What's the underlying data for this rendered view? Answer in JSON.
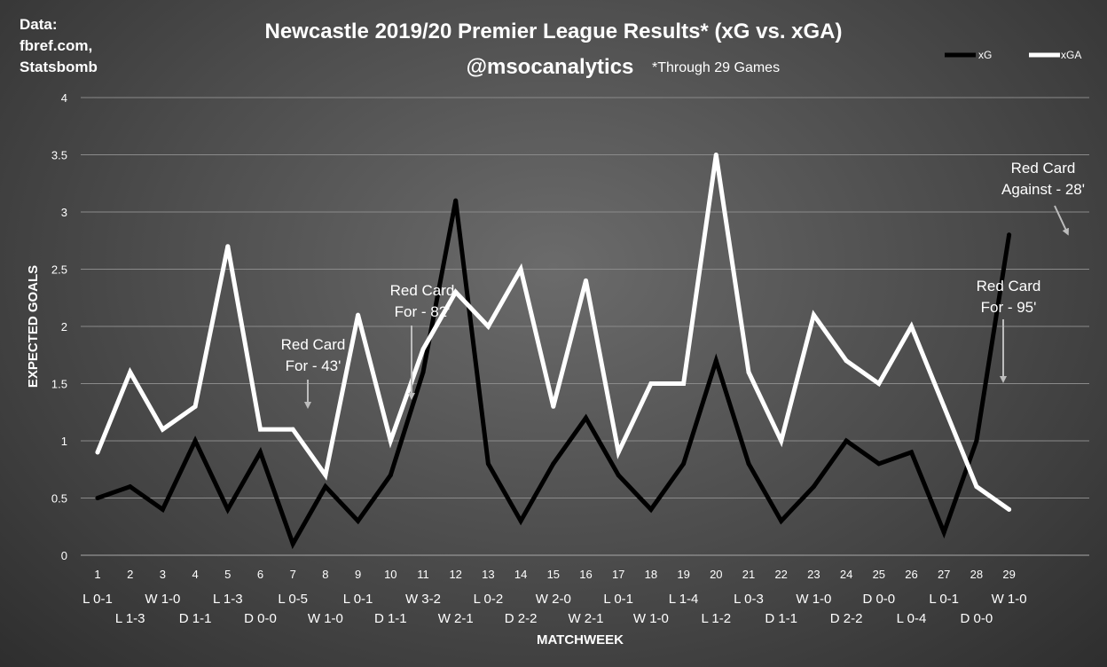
{
  "title": "Newcastle 2019/20 Premier League Results* (xG vs. xGA)",
  "subtitle": "@msocanalytics",
  "note": "*Through 29 Games",
  "source": [
    "Data:",
    "fbref.com,",
    "Statsbomb"
  ],
  "chart_data": {
    "type": "line",
    "xlabel": "MATCHWEEK",
    "ylabel": "EXPECTED GOALS",
    "ylim": [
      0,
      4
    ],
    "yticks": [
      "0",
      "0.5",
      "1",
      "1.5",
      "2",
      "2.5",
      "3",
      "3.5",
      "4"
    ],
    "grid": true,
    "legend_position": "top-right",
    "categories": [
      "1",
      "2",
      "3",
      "4",
      "5",
      "6",
      "7",
      "8",
      "9",
      "10",
      "11",
      "12",
      "13",
      "14",
      "15",
      "16",
      "17",
      "18",
      "19",
      "20",
      "21",
      "22",
      "23",
      "24",
      "25",
      "26",
      "27",
      "28",
      "29"
    ],
    "results": [
      "L 0-1",
      "L 1-3",
      "W 1-0",
      "D 1-1",
      "L 1-3",
      "D 0-0",
      "L 0-5",
      "W 1-0",
      "L 0-1",
      "D 1-1",
      "W 3-2",
      "W 2-1",
      "L 0-2",
      "D 2-2",
      "W 2-0",
      "W 2-1",
      "L 0-1",
      "W 1-0",
      "L 1-4",
      "L 1-2",
      "L 0-3",
      "D 1-1",
      "W 1-0",
      "D 2-2",
      "D 0-0",
      "L 0-4",
      "L 0-1",
      "D 0-0",
      "W 1-0"
    ],
    "series": [
      {
        "name": "xG",
        "color": "#000000",
        "values": [
          0.5,
          0.6,
          0.4,
          1.0,
          0.4,
          0.9,
          0.1,
          0.6,
          0.3,
          0.7,
          1.6,
          3.1,
          0.8,
          0.3,
          0.8,
          1.2,
          0.7,
          0.4,
          0.8,
          1.7,
          0.8,
          0.3,
          0.6,
          1.0,
          0.8,
          0.9,
          0.2,
          1.0,
          2.8
        ]
      },
      {
        "name": "xGA",
        "color": "#ffffff",
        "values": [
          0.9,
          1.6,
          1.1,
          1.3,
          2.7,
          1.1,
          1.1,
          0.7,
          2.1,
          1.0,
          1.8,
          2.3,
          2.0,
          2.5,
          1.3,
          2.4,
          0.9,
          1.5,
          1.5,
          3.5,
          1.6,
          1.0,
          2.1,
          1.7,
          1.5,
          2.0,
          1.3,
          0.6,
          0.4
        ]
      }
    ],
    "annotations": [
      {
        "lines": [
          "Red Card",
          "For - 43'"
        ],
        "matchweek": 7
      },
      {
        "lines": [
          "Red Card",
          "For - 82'"
        ],
        "matchweek": 10
      },
      {
        "lines": [
          "Red Card",
          "For - 95'"
        ],
        "matchweek": 27
      },
      {
        "lines": [
          "Red Card",
          "Against - 28'"
        ],
        "matchweek": 29
      }
    ]
  }
}
